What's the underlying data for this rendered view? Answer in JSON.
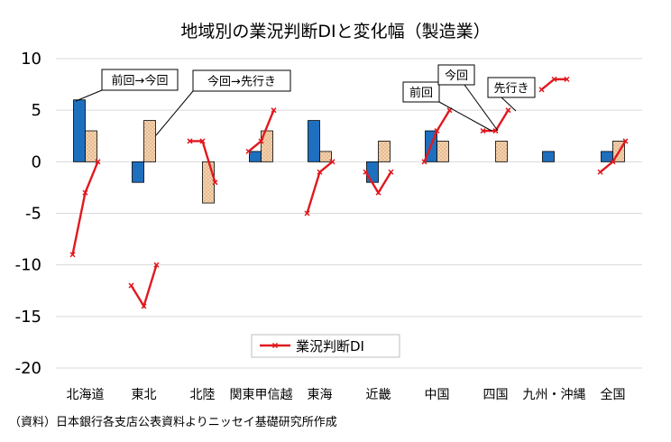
{
  "chart_data": {
    "type": "bar",
    "title": "地域別の業況判断DIと変化幅（製造業）",
    "source": "（資料）日本銀行各支店公表資料よりニッセイ基礎研究所作成",
    "categories": [
      "北海道",
      "東北",
      "北陸",
      "関東甲信越",
      "東海",
      "近畿",
      "中国",
      "四国",
      "九州・沖縄",
      "全国"
    ],
    "ylim": [
      -20,
      10
    ],
    "yticks": [
      10,
      5,
      0,
      -5,
      -10,
      -15,
      -20
    ],
    "grid": true,
    "series": [
      {
        "name": "前回→今回",
        "type": "bar",
        "color": "#1f6fbf",
        "values": [
          6,
          -2,
          0,
          1,
          4,
          -2,
          3,
          0,
          1,
          1
        ]
      },
      {
        "name": "今回→先行き",
        "type": "bar",
        "color": "#f6d2ae",
        "values": [
          3,
          4,
          -4,
          3,
          1,
          2,
          2,
          2,
          0,
          2
        ]
      },
      {
        "name": "業況判断DI",
        "type": "line",
        "color": "#e0191f",
        "points": [
          [
            -9,
            -3,
            0
          ],
          [
            -12,
            -14,
            -10
          ],
          [
            2,
            2,
            -2
          ],
          [
            1,
            2,
            5
          ],
          [
            -5,
            -1,
            0
          ],
          [
            -1,
            -3,
            -1
          ],
          [
            0,
            3,
            5
          ],
          [
            3,
            3,
            5
          ],
          [
            7,
            8,
            8
          ],
          [
            -1,
            0,
            2
          ]
        ]
      }
    ],
    "callouts": [
      "前回→今回",
      "今回→先行き",
      "前回",
      "今回",
      "先行き"
    ],
    "legend": {
      "label": "業況判断DI",
      "position": "bottom-center"
    }
  }
}
